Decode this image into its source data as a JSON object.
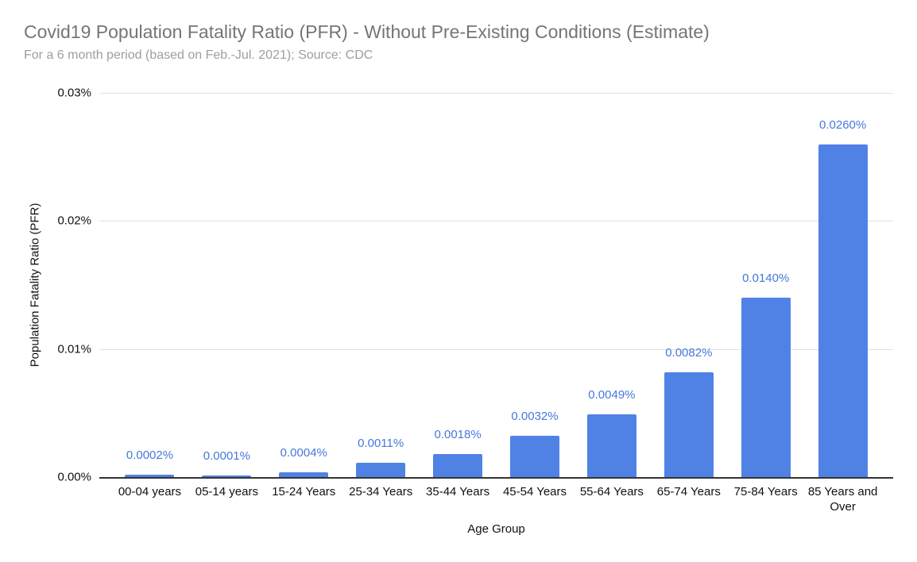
{
  "chart_data": {
    "type": "bar",
    "title": "Covid19 Population Fatality Ratio (PFR) - Without Pre-Existing Conditions (Estimate)",
    "subtitle": "For a 6 month period (based on Feb.-Jul. 2021); Source: CDC",
    "xlabel": "Age Group",
    "ylabel": "Population Fatality Ratio (PFR)",
    "categories": [
      "00-04 years",
      "05-14 years",
      "15-24 Years",
      "25-34 Years",
      "35-44 Years",
      "45-54 Years",
      "55-64 Years",
      "65-74 Years",
      "75-84 Years",
      "85 Years and Over"
    ],
    "values": [
      0.0002,
      0.0001,
      0.0004,
      0.0011,
      0.0018,
      0.0032,
      0.0049,
      0.0082,
      0.014,
      0.026
    ],
    "value_labels": [
      "0.0002%",
      "0.0001%",
      "0.0004%",
      "0.0011%",
      "0.0018%",
      "0.0032%",
      "0.0049%",
      "0.0082%",
      "0.0140%",
      "0.0260%"
    ],
    "y_ticks": [
      "0.00%",
      "0.01%",
      "0.02%",
      "0.03%"
    ],
    "ylim": [
      0,
      0.03
    ],
    "grid": "horizontal",
    "legend": "none"
  },
  "colors": {
    "bar": "#5082e6",
    "value_label": "#4678dc",
    "grid": "#e0e0e0",
    "axis": "#333333",
    "title": "#757575",
    "subtitle": "#9e9e9e",
    "text": "#111111",
    "background": "#ffffff"
  }
}
